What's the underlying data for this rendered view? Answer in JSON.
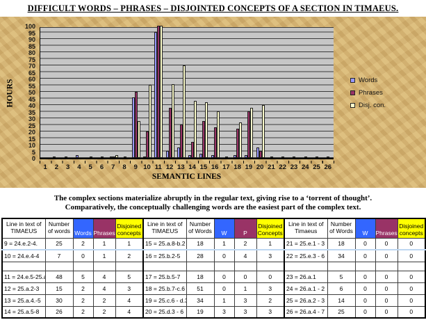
{
  "title": "DIFFICULT WORDS – PHRASES – DISJOINTED CONCEPTS OF A SECTION IN TIMAEUS.",
  "caption": {
    "line1": "The complex sections materialize abruptly in the regular text, giving rise to a ‘torrent of thought’.",
    "line2": "Comparatively, the conceptually challenging words are the easiest part of the complex text."
  },
  "chart_data": {
    "type": "bar",
    "title": "",
    "xlabel": "SEMANTIC LINES",
    "ylabel": "HOURS",
    "ylim": [
      0,
      100
    ],
    "ytick_step": 5,
    "grid": true,
    "legend_position": "right",
    "plot_bg": "#c6c6c6",
    "categories": [
      1,
      2,
      3,
      4,
      5,
      6,
      7,
      8,
      9,
      10,
      11,
      12,
      13,
      14,
      15,
      16,
      17,
      18,
      19,
      20,
      21,
      22,
      23,
      24,
      25,
      26
    ],
    "series": [
      {
        "name": "Words",
        "color": "#9999ff",
        "values": [
          0,
          1,
          1,
          2,
          0,
          0,
          1,
          0,
          46,
          1,
          95,
          5,
          8,
          2,
          3,
          2,
          0,
          2,
          2,
          8,
          0,
          0,
          0,
          0,
          0,
          0
        ]
      },
      {
        "name": "Phrases",
        "color": "#993366",
        "values": [
          0,
          0,
          0,
          0,
          1,
          1,
          1,
          1,
          50,
          20,
          100,
          38,
          25,
          12,
          28,
          23,
          1,
          22,
          35,
          5,
          1,
          1,
          1,
          1,
          1,
          1
        ]
      },
      {
        "name": "Disj. con.",
        "color": "#ffffcc",
        "values": [
          0,
          0,
          0,
          0,
          0,
          0,
          2,
          0,
          28,
          55,
          100,
          56,
          70,
          43,
          42,
          35,
          0,
          27,
          38,
          40,
          0,
          0,
          0,
          0,
          0,
          0
        ]
      }
    ]
  },
  "table": {
    "header_colors": {
      "words": "#3366ff",
      "phrases": "#993366",
      "disjoined": "#ffff00"
    },
    "groups": [
      {
        "headers": [
          "Line in text of TIMAEUS",
          "Number of words",
          "Words",
          "Phrases",
          "Disjoined concepts"
        ],
        "rows": [
          [
            "9 = 24.e.2-4.",
            "25",
            "2",
            "1",
            "1"
          ],
          [
            "10 = 24.e.4-4",
            "7",
            "0",
            "1",
            "2"
          ],
          [
            "",
            "",
            "",
            "",
            ""
          ],
          [
            "11 = 24.e.5-25.a.2.",
            "48",
            "5",
            "4",
            "5"
          ],
          [
            "12 = 25.a.2-3",
            "15",
            "2",
            "4",
            "3"
          ],
          [
            "13 = 25.a.4.-5",
            "30",
            "2",
            "2",
            "4"
          ],
          [
            "14 = 25.a.5-8",
            "26",
            "2",
            "2",
            "4"
          ]
        ]
      },
      {
        "headers": [
          "Line  in text of TIMAEUS",
          "Number of Words",
          "W",
          "P",
          "Disjoined Concepts"
        ],
        "rows": [
          [
            "15 = 25.a.8-b.2",
            "18",
            "1",
            "2",
            "1"
          ],
          [
            "16 = 25.b.2-5",
            "28",
            "0",
            "4",
            "3"
          ],
          [
            "",
            "",
            "",
            "",
            ""
          ],
          [
            "17 = 25.b.5-7",
            "18",
            "0",
            "0",
            "0"
          ],
          [
            "18 = 25.b.7-c.6",
            "51",
            "0",
            "1",
            "3"
          ],
          [
            "19 = 25.c.6 - d.3",
            "34",
            "1",
            "3",
            "2"
          ],
          [
            "20 = 25.d.3 - 6",
            "19",
            "3",
            "3",
            "3"
          ]
        ]
      },
      {
        "headers": [
          "Line in text of Timaeus",
          "Number of Words",
          "W",
          "Phrases",
          "Disjoined concepts"
        ],
        "rows": [
          [
            "21 = 25.e.1 - 3",
            "18",
            "0",
            "0",
            "0"
          ],
          [
            "22 = 25.e.3 - 6",
            "34",
            "0",
            "0",
            "0"
          ],
          [
            "",
            "",
            "",
            "",
            ""
          ],
          [
            "23 = 26.a.1",
            "5",
            "0",
            "0",
            "0"
          ],
          [
            "24 = 26.a.1 - 2",
            "6",
            "0",
            "0",
            "0"
          ],
          [
            "25 = 26.a.2 - 3",
            "14",
            "0",
            "0",
            "0"
          ],
          [
            "26 = 26.a.4 - 7",
            "25",
            "0",
            "0",
            "0"
          ]
        ]
      }
    ]
  }
}
